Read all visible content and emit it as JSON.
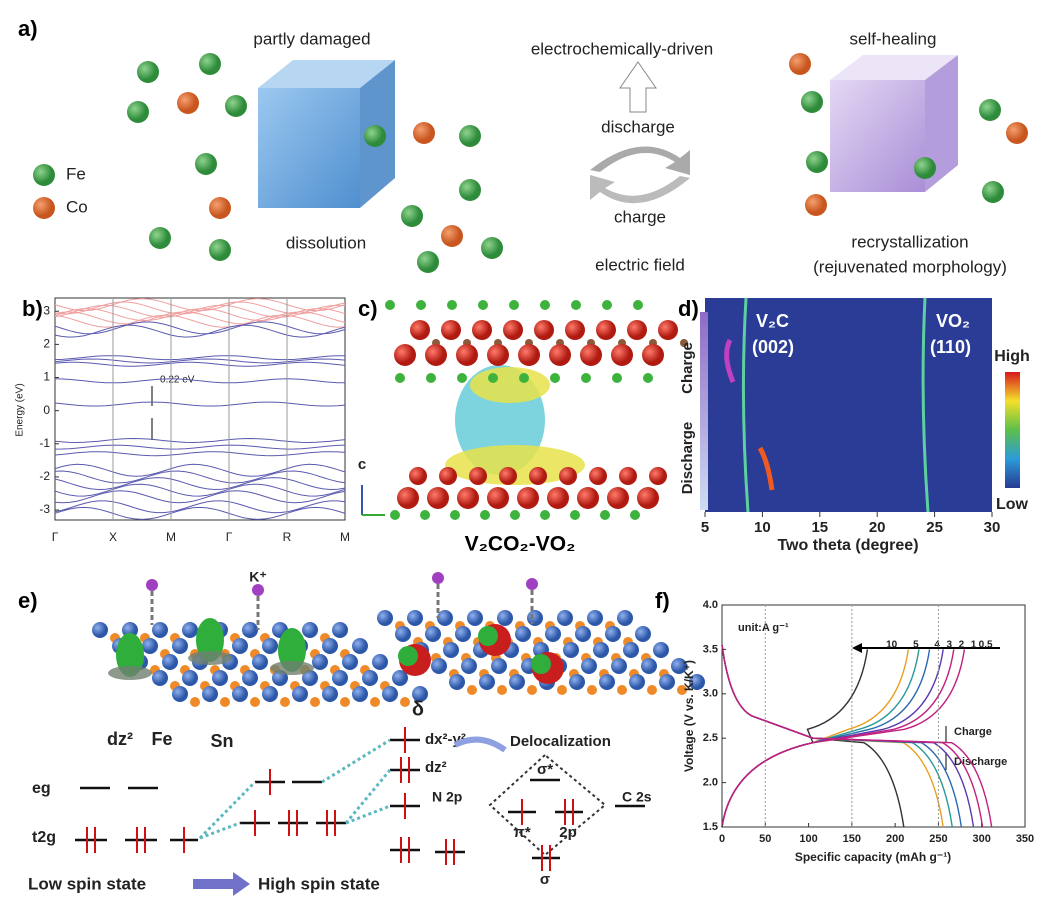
{
  "panel_a": {
    "label": "a)",
    "title_left": "partly damaged",
    "title_mid": "electrochemically-driven",
    "title_right": "self-healing",
    "discharge": "discharge",
    "charge": "charge",
    "dissolution": "dissolution",
    "field": "electric field",
    "recryst": "recrystallization",
    "rejuv": "(rejuvenated morphology)",
    "legend": [
      "Fe",
      "Co"
    ]
  },
  "panel_b": {
    "label": "b)",
    "ylabel": "Energy (eV)",
    "yticks": [
      -3,
      -2,
      -1,
      0,
      1,
      2,
      3
    ],
    "ylim": [
      -3.3,
      3.4
    ],
    "xlabels": [
      "Γ",
      "X",
      "M",
      "Γ",
      "R",
      "M"
    ],
    "annotation": "0.22 eV"
  },
  "panel_c": {
    "label": "c)",
    "axis": "c",
    "caption": "V₂CO₂-VO₂"
  },
  "panel_d": {
    "label": "d)",
    "xlabel": "Two theta (degree)",
    "xlim": [
      5,
      30
    ],
    "xticks": [
      5,
      10,
      15,
      20,
      25,
      30
    ],
    "peak1": "V₂C",
    "hkl1": "(002)",
    "peak2": "VO₂",
    "hkl2": "(110)",
    "high": "High",
    "low": "Low",
    "charge": "Charge",
    "discharge": "Discharge"
  },
  "panel_e": {
    "label": "e)",
    "kplus": "K⁺",
    "dz2": "dz²",
    "fe": "Fe",
    "sn": "Sn",
    "delta": "δ",
    "eg": "eg",
    "t2g": "t2g",
    "dxy": "dx²-y²",
    "dz2b": "dz²",
    "deloc": "Delocalization",
    "n2p": "N 2p",
    "c2s": "C 2s",
    "sigma_star": "σ*",
    "pi_star": "π*",
    "two_p": "2p",
    "sigma": "σ",
    "low": "Low spin state",
    "high": "High spin state"
  },
  "panel_f": {
    "label": "f)",
    "xlabel": "Specific capacity (mAh g⁻¹)",
    "ylabel": "Voltage (V vs. K/K⁺)",
    "xlim": [
      0,
      350
    ],
    "ylim": [
      1.5,
      4.0
    ],
    "xticks": [
      0,
      50,
      100,
      150,
      200,
      250,
      300,
      350
    ],
    "yticks": [
      1.5,
      {
        "value": 2,
        "label": "2.0"
      },
      2.5,
      {
        "value": 3,
        "label": "3.0"
      },
      3.5,
      {
        "value": 4,
        "label": "4.0"
      }
    ],
    "unit": "unit:A g⁻¹",
    "rates": [
      "10",
      "5",
      "4",
      "3",
      "2",
      "1",
      "0.5"
    ],
    "charge": "Charge",
    "discharge": "Discharge"
  }
}
